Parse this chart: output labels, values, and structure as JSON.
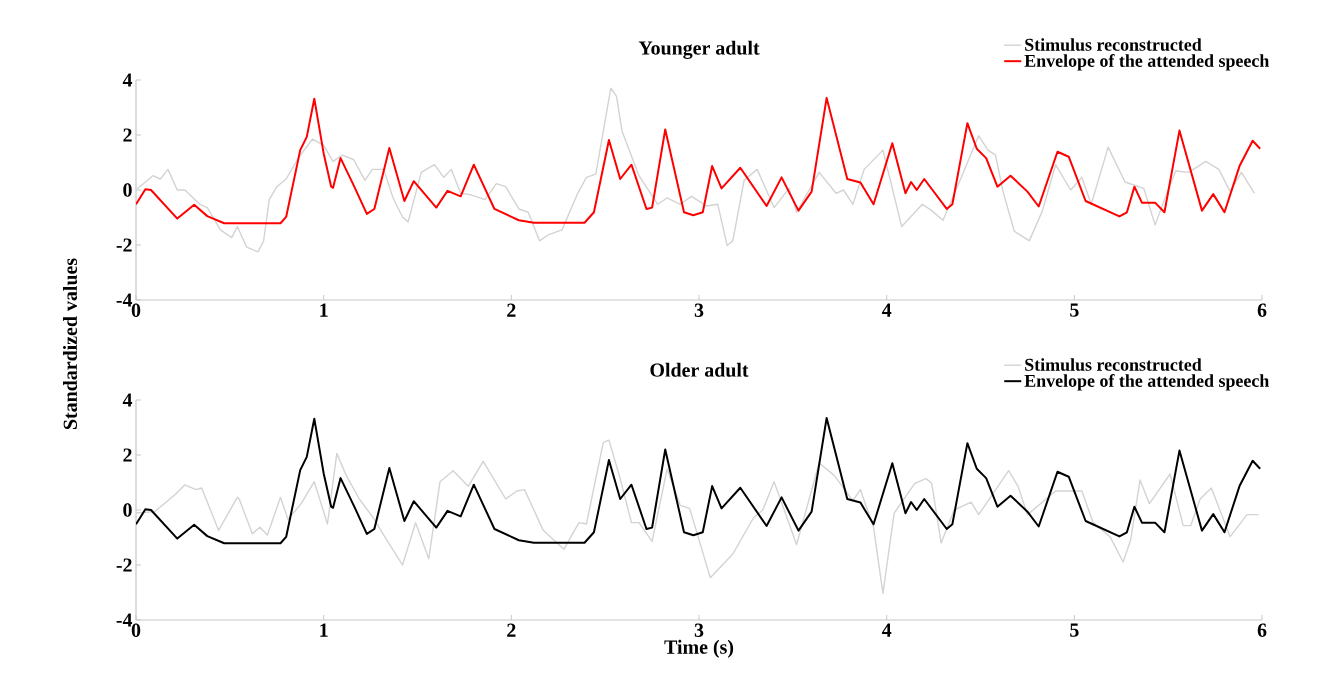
{
  "chart_data": [
    {
      "type": "line",
      "title": "Younger adult",
      "ylabel": "Standardized values",
      "xlim": [
        0,
        6
      ],
      "ylim": [
        -4,
        4
      ],
      "xticks": [
        0,
        1,
        2,
        3,
        4,
        5,
        6
      ],
      "yticks": [
        -4,
        -2,
        0,
        2,
        4
      ],
      "legend": "top right",
      "series": [
        {
          "name": "Stimulus reconstructed",
          "color": "#d3d3d3",
          "x": [
            0,
            0.09,
            0.13,
            0.17,
            0.22,
            0.26,
            0.34,
            0.38,
            0.45,
            0.51,
            0.54,
            0.59,
            0.65,
            0.68,
            0.71,
            0.75,
            0.8,
            0.87,
            0.94,
            1.0,
            1.05,
            1.1,
            1.16,
            1.22,
            1.26,
            1.32,
            1.37,
            1.42,
            1.45,
            1.52,
            1.59,
            1.64,
            1.68,
            1.73,
            1.78,
            1.86,
            1.92,
            1.97,
            2.04,
            2.09,
            2.15,
            2.2,
            2.27,
            2.35,
            2.4,
            2.45,
            2.53,
            2.56,
            2.59,
            2.68,
            2.78,
            2.83,
            2.9,
            2.96,
            3.04,
            3.1,
            3.15,
            3.18,
            3.24,
            3.31,
            3.4,
            3.48,
            3.52,
            3.64,
            3.73,
            3.77,
            3.82,
            3.88,
            3.98,
            4.08,
            4.19,
            4.24,
            4.3,
            4.38,
            4.49,
            4.54,
            4.58,
            4.62,
            4.68,
            4.76,
            4.83,
            4.9,
            4.98,
            5.04,
            5.09,
            5.18,
            5.27,
            5.37,
            5.43,
            5.48,
            5.54,
            5.61,
            5.7,
            5.77,
            5.83,
            5.89,
            5.96
          ],
          "values": [
            0,
            0.52,
            0.4,
            0.75,
            0,
            0,
            -0.52,
            -0.64,
            -1.45,
            -1.73,
            -1.33,
            -2.08,
            -2.25,
            -1.85,
            -0.35,
            0.12,
            0.4,
            1.21,
            1.85,
            1.62,
            1.04,
            1.27,
            1.1,
            0.35,
            0.75,
            0.75,
            -0.29,
            -0.98,
            -1.16,
            0.64,
            0.92,
            0.46,
            0.75,
            -0.12,
            -0.17,
            -0.35,
            0.23,
            0.12,
            -0.69,
            -0.81,
            -1.85,
            -1.62,
            -1.45,
            -0.17,
            0.46,
            0.58,
            3.7,
            3.41,
            2.14,
            0.52,
            -0.52,
            -0.29,
            -0.52,
            -0.23,
            -0.58,
            -0.52,
            -2.02,
            -1.85,
            0.35,
            0.75,
            -0.64,
            0.06,
            -0.81,
            0.64,
            -0.12,
            0,
            -0.52,
            0.75,
            1.45,
            -1.33,
            -0.52,
            -0.75,
            -1.1,
            0.17,
            1.97,
            1.45,
            1.27,
            -0.06,
            -1.5,
            -1.85,
            -0.75,
            0.92,
            0,
            0.46,
            -0.52,
            1.56,
            0.29,
            0.06,
            -1.27,
            -0.35,
            0.69,
            0.64,
            1.04,
            0.75,
            -0.06,
            0.64,
            -0.12
          ]
        },
        {
          "name": "Envelope of the attended speech",
          "color": "#ff0000",
          "x": [
            0,
            0.05,
            0.08,
            0.22,
            0.31,
            0.38,
            0.47,
            0.77,
            0.8,
            0.875,
            0.91,
            0.95,
            1.0,
            1.04,
            1.05,
            1.09,
            1.16,
            1.23,
            1.27,
            1.35,
            1.43,
            1.48,
            1.6,
            1.66,
            1.73,
            1.8,
            1.91,
            2.04,
            2.12,
            2.39,
            2.44,
            2.52,
            2.58,
            2.64,
            2.72,
            2.75,
            2.82,
            2.92,
            2.97,
            3.02,
            3.07,
            3.12,
            3.22,
            3.36,
            3.44,
            3.53,
            3.6,
            3.68,
            3.79,
            3.86,
            3.93,
            4.03,
            4.1,
            4.13,
            4.16,
            4.2,
            4.32,
            4.35,
            4.43,
            4.48,
            4.53,
            4.59,
            4.66,
            4.75,
            4.81,
            4.91,
            4.97,
            5.06,
            5.24,
            5.28,
            5.32,
            5.36,
            5.43,
            5.48,
            5.56,
            5.68,
            5.74,
            5.8,
            5.88,
            5.95,
            5.99
          ],
          "values": [
            -0.52,
            0.03,
            0,
            -1.04,
            -0.54,
            -0.95,
            -1.21,
            -1.21,
            -0.98,
            1.45,
            1.93,
            3.32,
            1.33,
            0.12,
            0.08,
            1.16,
            0.17,
            -0.87,
            -0.69,
            1.53,
            -0.4,
            0.32,
            -0.64,
            -0.03,
            -0.23,
            0.92,
            -0.69,
            -1.1,
            -1.19,
            -1.19,
            -0.81,
            1.82,
            0.4,
            0.92,
            -0.69,
            -0.64,
            2.2,
            -0.81,
            -0.92,
            -0.81,
            0.87,
            0.06,
            0.81,
            -0.58,
            0.46,
            -0.75,
            -0.06,
            3.35,
            0.4,
            0.27,
            -0.52,
            1.7,
            -0.12,
            0.29,
            0,
            0.4,
            -0.69,
            -0.52,
            2.43,
            1.5,
            1.16,
            0.12,
            0.52,
            -0.06,
            -0.6,
            1.39,
            1.21,
            -0.4,
            -0.96,
            -0.81,
            0.12,
            -0.46,
            -0.46,
            -0.81,
            2.16,
            -0.75,
            -0.15,
            -0.81,
            0.87,
            1.79,
            1.5
          ]
        }
      ]
    },
    {
      "type": "line",
      "title": "Older adult",
      "xlabel": "Time (s)",
      "xlim": [
        0,
        6
      ],
      "ylim": [
        -4,
        4
      ],
      "xticks": [
        0,
        1,
        2,
        3,
        4,
        5,
        6
      ],
      "yticks": [
        -4,
        -2,
        0,
        2,
        4
      ],
      "legend": "top right",
      "series": [
        {
          "name": "Stimulus reconstructed",
          "color": "#d3d3d3",
          "x": [
            0,
            0.1,
            0.21,
            0.26,
            0.32,
            0.35,
            0.44,
            0.54,
            0.55,
            0.62,
            0.66,
            0.7,
            0.77,
            0.81,
            0.88,
            0.95,
            1.02,
            1.07,
            1.12,
            1.19,
            1.27,
            1.32,
            1.42,
            1.49,
            1.56,
            1.62,
            1.69,
            1.77,
            1.85,
            1.97,
            2.03,
            2.07,
            2.17,
            2.28,
            2.36,
            2.4,
            2.49,
            2.52,
            2.58,
            2.64,
            2.68,
            2.75,
            2.83,
            2.9,
            2.95,
            3.06,
            3.18,
            3.29,
            3.34,
            3.4,
            3.52,
            3.64,
            3.72,
            3.82,
            3.86,
            3.93,
            3.98,
            4.04,
            4.15,
            4.21,
            4.24,
            4.29,
            4.36,
            4.45,
            4.49,
            4.57,
            4.65,
            4.7,
            4.75,
            4.9,
            5.04,
            5.1,
            5.19,
            5.26,
            5.3,
            5.35,
            5.4,
            5.51,
            5.58,
            5.62,
            5.67,
            5.73,
            5.83,
            5.92,
            5.98
          ],
          "values": [
            -0.11,
            -0.06,
            0.57,
            0.91,
            0.74,
            0.8,
            -0.74,
            0.46,
            0.4,
            -0.86,
            -0.63,
            -0.91,
            0.46,
            -0.34,
            0.23,
            1.03,
            -0.51,
            2.06,
            1.26,
            0.4,
            -0.34,
            -0.91,
            -2.0,
            -0.46,
            -1.77,
            1.03,
            1.43,
            0.86,
            1.77,
            0.4,
            0.69,
            0.74,
            -0.74,
            -1.43,
            -0.46,
            -0.51,
            2.46,
            2.54,
            1.14,
            -0.46,
            -0.46,
            -1.14,
            1.49,
            0.17,
            0.06,
            -2.46,
            -1.6,
            -0.29,
            0,
            1.03,
            -1.26,
            1.71,
            1.26,
            0.34,
            0.74,
            -0.63,
            -3.03,
            -0.11,
            0.97,
            1.14,
            0.97,
            -1.2,
            0,
            0.29,
            -0.17,
            0.63,
            1.43,
            0.86,
            -0.17,
            0.69,
            0.69,
            -0.46,
            -0.97,
            -1.89,
            -1.09,
            1.09,
            0.23,
            1.31,
            -0.57,
            -0.57,
            0.4,
            0.8,
            -0.97,
            -0.17,
            -0.17
          ]
        },
        {
          "name": "Envelope of the attended speech",
          "color": "#000000",
          "x": [
            0,
            0.05,
            0.08,
            0.22,
            0.31,
            0.38,
            0.47,
            0.77,
            0.8,
            0.875,
            0.91,
            0.95,
            1.0,
            1.04,
            1.05,
            1.09,
            1.16,
            1.23,
            1.27,
            1.35,
            1.43,
            1.48,
            1.6,
            1.66,
            1.73,
            1.8,
            1.91,
            2.04,
            2.12,
            2.39,
            2.44,
            2.52,
            2.58,
            2.64,
            2.72,
            2.75,
            2.82,
            2.92,
            2.97,
            3.02,
            3.07,
            3.12,
            3.22,
            3.36,
            3.44,
            3.53,
            3.6,
            3.68,
            3.79,
            3.86,
            3.93,
            4.03,
            4.1,
            4.13,
            4.16,
            4.2,
            4.32,
            4.35,
            4.43,
            4.48,
            4.53,
            4.59,
            4.66,
            4.75,
            4.81,
            4.91,
            4.97,
            5.06,
            5.24,
            5.28,
            5.32,
            5.36,
            5.43,
            5.48,
            5.56,
            5.68,
            5.74,
            5.8,
            5.88,
            5.95,
            5.99
          ],
          "values": [
            -0.52,
            0.03,
            0,
            -1.04,
            -0.54,
            -0.95,
            -1.21,
            -1.21,
            -0.98,
            1.45,
            1.93,
            3.32,
            1.33,
            0.12,
            0.08,
            1.16,
            0.17,
            -0.87,
            -0.69,
            1.53,
            -0.4,
            0.32,
            -0.64,
            -0.03,
            -0.23,
            0.92,
            -0.69,
            -1.1,
            -1.19,
            -1.19,
            -0.81,
            1.82,
            0.4,
            0.92,
            -0.69,
            -0.64,
            2.2,
            -0.81,
            -0.92,
            -0.81,
            0.87,
            0.06,
            0.81,
            -0.58,
            0.46,
            -0.75,
            -0.06,
            3.35,
            0.4,
            0.27,
            -0.52,
            1.7,
            -0.12,
            0.29,
            0,
            0.4,
            -0.69,
            -0.52,
            2.43,
            1.5,
            1.16,
            0.12,
            0.52,
            -0.06,
            -0.6,
            1.39,
            1.21,
            -0.4,
            -0.96,
            -0.81,
            0.12,
            -0.46,
            -0.46,
            -0.81,
            2.16,
            -0.75,
            -0.15,
            -0.81,
            0.87,
            1.79,
            1.5
          ]
        }
      ]
    }
  ]
}
